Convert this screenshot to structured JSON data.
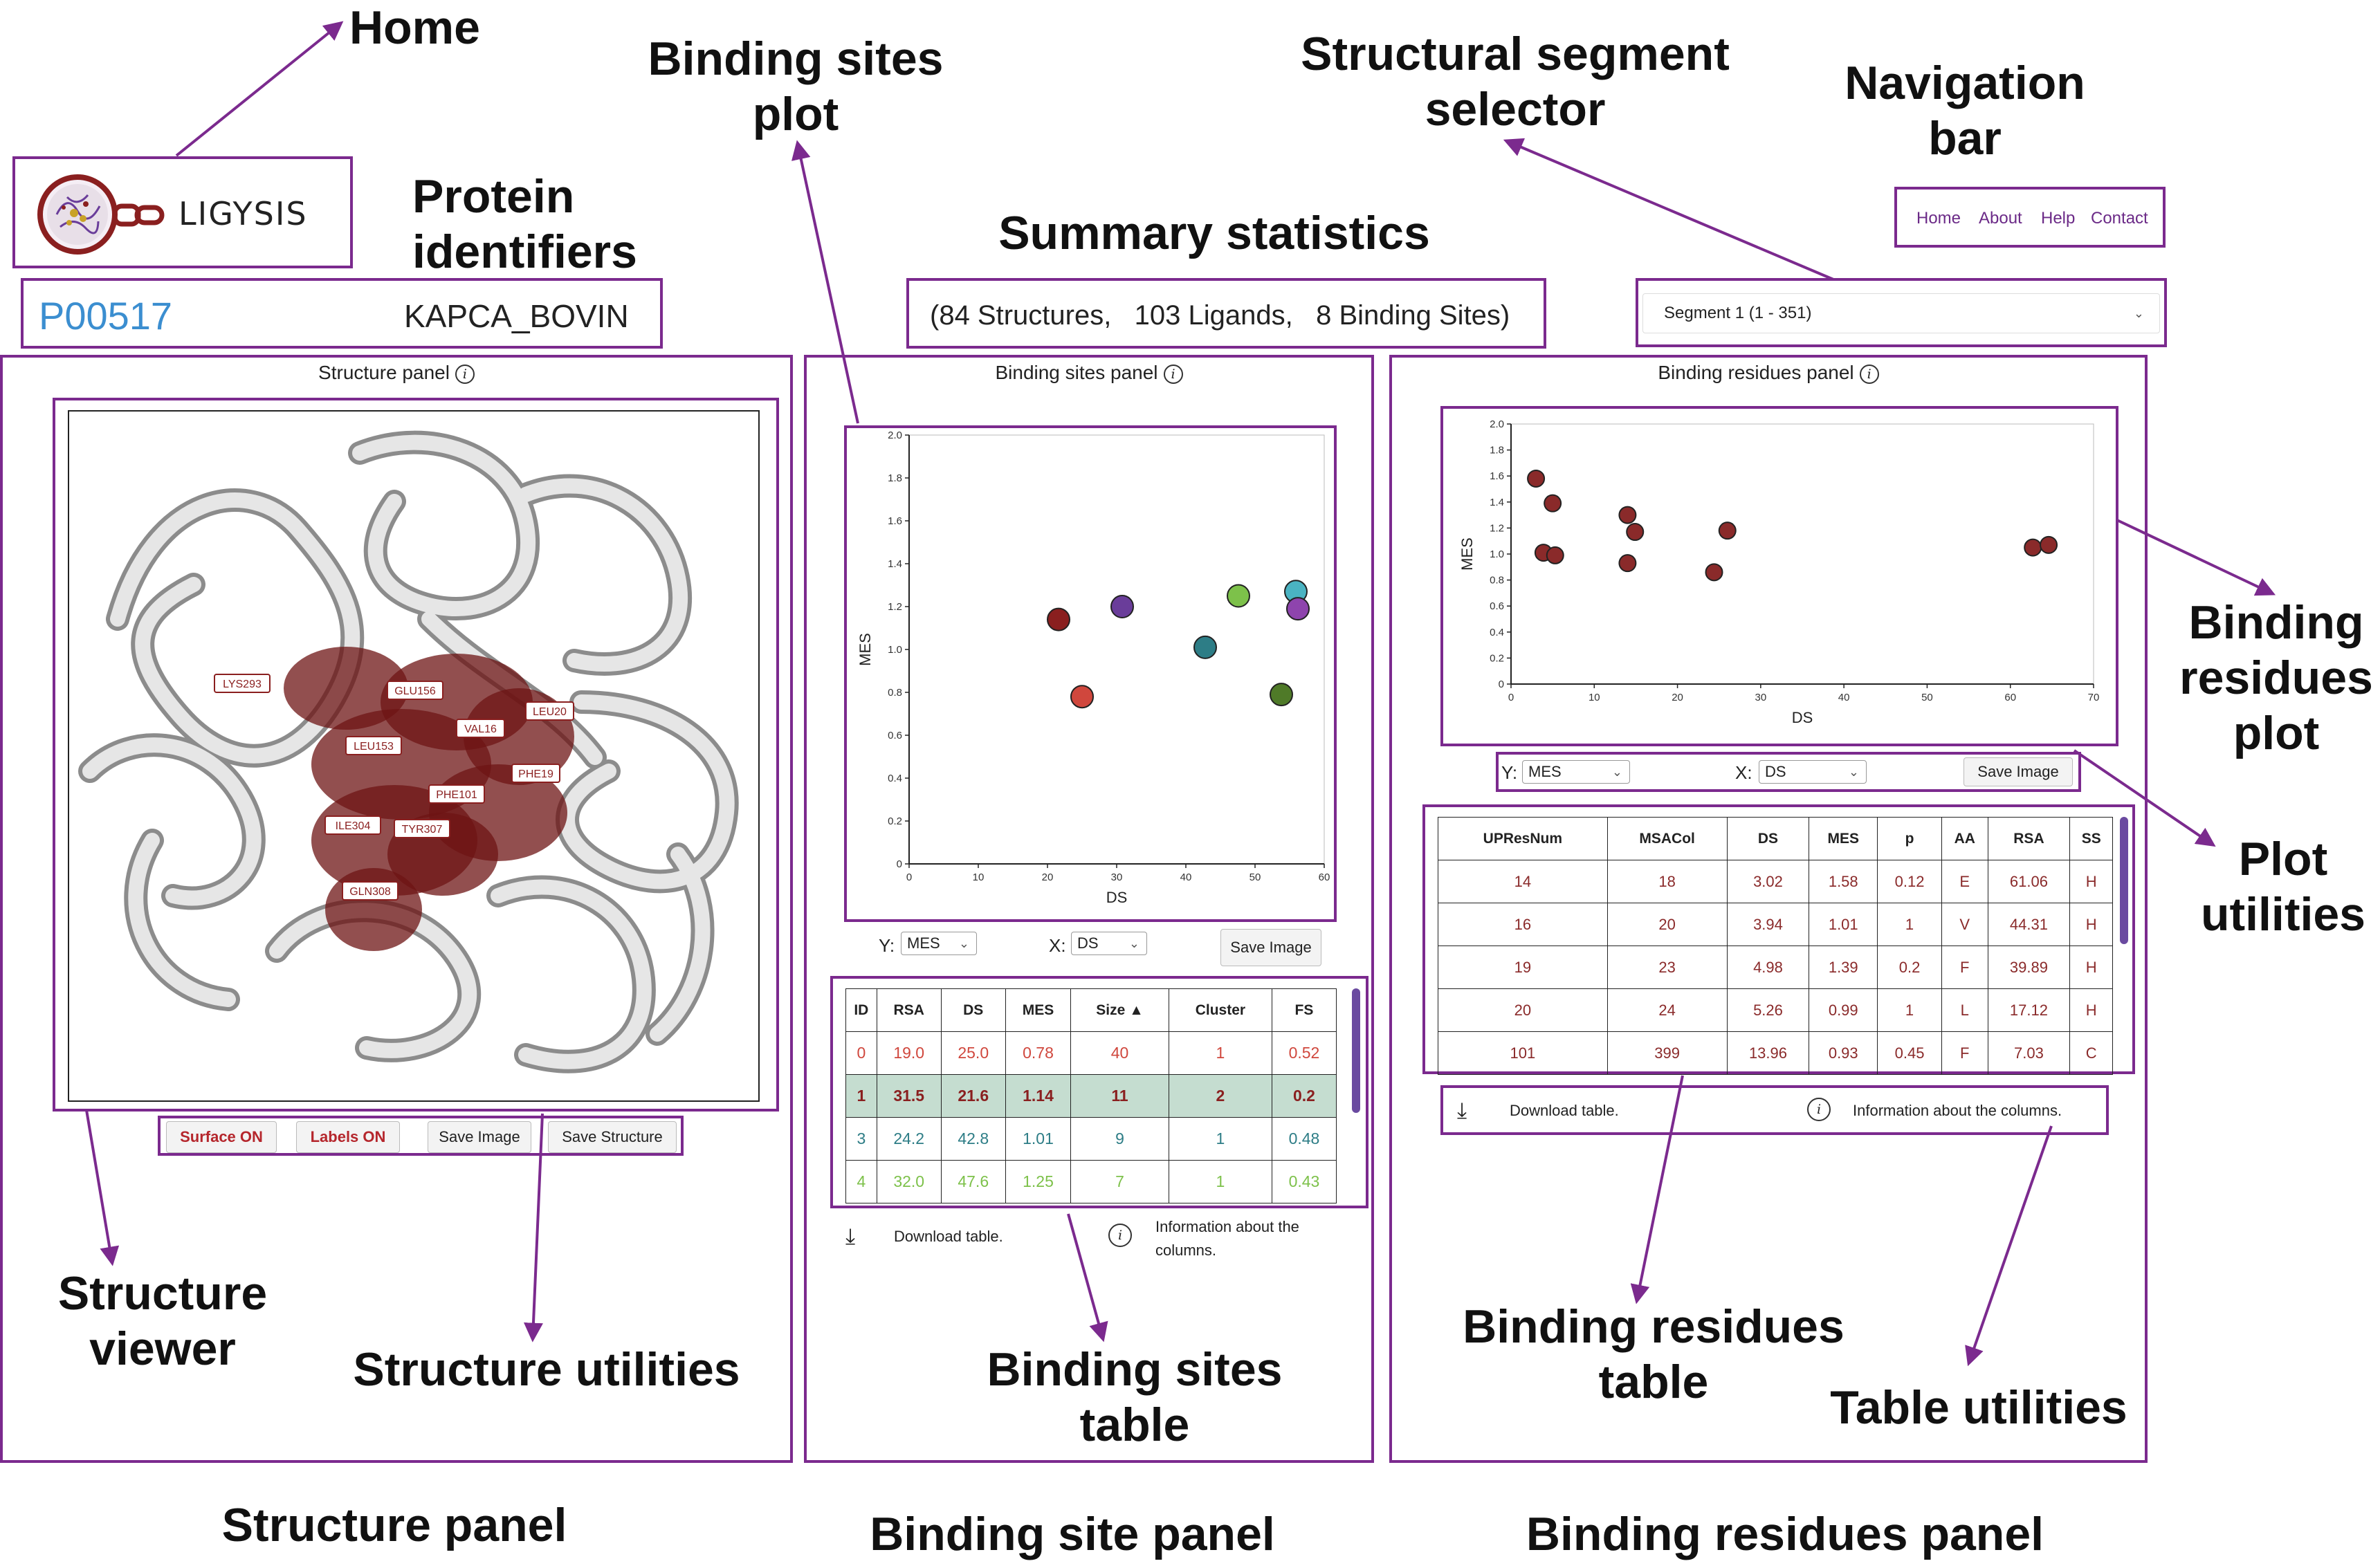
{
  "callouts": {
    "home": "Home",
    "protein_identifiers": "Protein\nidentifiers",
    "binding_sites_plot": "Binding sites\nplot",
    "summary_statistics": "Summary statistics",
    "structural_segment_selector": "Structural segment\nselector",
    "navigation_bar": "Navigation\nbar",
    "binding_residues_plot": "Binding\nresidues\nplot",
    "plot_utilities": "Plot\nutilities",
    "structure_viewer": "Structure\nviewer",
    "structure_utilities": "Structure utilities",
    "binding_sites_table": "Binding sites\ntable",
    "binding_residues_table": "Binding residues\ntable",
    "table_utilities": "Table utilities",
    "structure_panel": "Structure panel",
    "binding_site_panel": "Binding site panel",
    "binding_residues_panel": "Binding residues panel"
  },
  "logo": {
    "text": "LIGYSIS"
  },
  "nav": {
    "home": "Home",
    "about": "About",
    "help": "Help",
    "contact": "Contact"
  },
  "protein": {
    "accession": "P00517",
    "name": "KAPCA_BOVIN"
  },
  "summary": {
    "text": "(84 Structures,   103 Ligands,   8 Binding Sites)"
  },
  "segment": {
    "selected": "Segment 1 (1 - 351)"
  },
  "structure_panel": {
    "title": "Structure panel",
    "residue_labels": [
      "LYS293",
      "GLU156",
      "VAL16",
      "LEU20",
      "LEU153",
      "PHE19",
      "PHE101",
      "ILE304",
      "TYR307",
      "GLN308"
    ],
    "buttons": {
      "surface": "Surface ON",
      "labels": "Labels ON",
      "save_image": "Save Image",
      "save_structure": "Save Structure"
    }
  },
  "sites_panel": {
    "title": "Binding sites panel",
    "y_label": "Y:",
    "y_value": "MES",
    "x_label": "X:",
    "x_value": "DS",
    "save_image": "Save Image",
    "download": "Download table.",
    "info": "Information about the\ncolumns.",
    "columns": [
      "ID",
      "RSA",
      "DS",
      "MES",
      "Size ▲",
      "Cluster",
      "FS"
    ],
    "rows": [
      [
        "0",
        "19.0",
        "25.0",
        "0.78",
        "40",
        "1",
        "0.52"
      ],
      [
        "1",
        "31.5",
        "21.6",
        "1.14",
        "11",
        "2",
        "0.2"
      ],
      [
        "3",
        "24.2",
        "42.8",
        "1.01",
        "9",
        "1",
        "0.48"
      ],
      [
        "4",
        "32.0",
        "47.6",
        "1.25",
        "7",
        "1",
        "0.43"
      ]
    ],
    "row_colors": [
      "#d0473d",
      "#8a1f1f",
      "#2d7d86",
      "#7dc14a"
    ],
    "selected_row": 1
  },
  "residues_panel": {
    "title": "Binding residues panel",
    "y_label": "Y:",
    "y_value": "MES",
    "x_label": "X:",
    "x_value": "DS",
    "save_image": "Save Image",
    "download": "Download table.",
    "info": "Information about the columns.",
    "columns": [
      "UPResNum",
      "MSACol",
      "DS",
      "MES",
      "p",
      "AA",
      "RSA",
      "SS"
    ],
    "rows": [
      [
        "14",
        "18",
        "3.02",
        "1.58",
        "0.12",
        "E",
        "61.06",
        "H"
      ],
      [
        "16",
        "20",
        "3.94",
        "1.01",
        "1",
        "V",
        "44.31",
        "H"
      ],
      [
        "19",
        "23",
        "4.98",
        "1.39",
        "0.2",
        "F",
        "39.89",
        "H"
      ],
      [
        "20",
        "24",
        "5.26",
        "0.99",
        "1",
        "L",
        "17.12",
        "H"
      ],
      [
        "101",
        "399",
        "13.96",
        "0.93",
        "0.45",
        "F",
        "7.03",
        "C"
      ]
    ]
  },
  "chart_data": [
    {
      "type": "scatter",
      "name": "binding_sites_plot",
      "xlabel": "DS",
      "ylabel": "MES",
      "xlim": [
        0,
        60
      ],
      "ylim": [
        0,
        2.0
      ],
      "xticks": [
        0,
        10,
        20,
        30,
        40,
        50,
        60
      ],
      "yticks": [
        0,
        0.2,
        0.4,
        0.6,
        0.8,
        1.0,
        1.2,
        1.4,
        1.6,
        1.8,
        2.0
      ],
      "points": [
        {
          "x": 21.6,
          "y": 1.14,
          "color": "#8a1f1f"
        },
        {
          "x": 25.0,
          "y": 0.78,
          "color": "#d0473d"
        },
        {
          "x": 30.8,
          "y": 1.2,
          "color": "#6a3d9a"
        },
        {
          "x": 42.8,
          "y": 1.01,
          "color": "#2d7d86"
        },
        {
          "x": 47.6,
          "y": 1.25,
          "color": "#7dc14a"
        },
        {
          "x": 53.8,
          "y": 0.79,
          "color": "#4f7a28"
        },
        {
          "x": 55.9,
          "y": 1.27,
          "color": "#4ab3c2"
        },
        {
          "x": 56.2,
          "y": 1.19,
          "color": "#8e44ad"
        }
      ]
    },
    {
      "type": "scatter",
      "name": "binding_residues_plot",
      "xlabel": "DS",
      "ylabel": "MES",
      "xlim": [
        0,
        70
      ],
      "ylim": [
        0,
        2.0
      ],
      "xticks": [
        0,
        10,
        20,
        30,
        40,
        50,
        60,
        70
      ],
      "yticks": [
        0,
        0.2,
        0.4,
        0.6,
        0.8,
        1.0,
        1.2,
        1.4,
        1.6,
        1.8,
        2.0
      ],
      "color": "#8a2a2a",
      "points": [
        {
          "x": 3.0,
          "y": 1.58
        },
        {
          "x": 3.9,
          "y": 1.01
        },
        {
          "x": 5.0,
          "y": 1.39
        },
        {
          "x": 5.3,
          "y": 0.99
        },
        {
          "x": 14.0,
          "y": 1.3
        },
        {
          "x": 14.9,
          "y": 1.17
        },
        {
          "x": 14.0,
          "y": 0.93
        },
        {
          "x": 24.4,
          "y": 0.86
        },
        {
          "x": 26.0,
          "y": 1.18
        },
        {
          "x": 62.7,
          "y": 1.05
        },
        {
          "x": 64.6,
          "y": 1.07
        }
      ]
    }
  ]
}
